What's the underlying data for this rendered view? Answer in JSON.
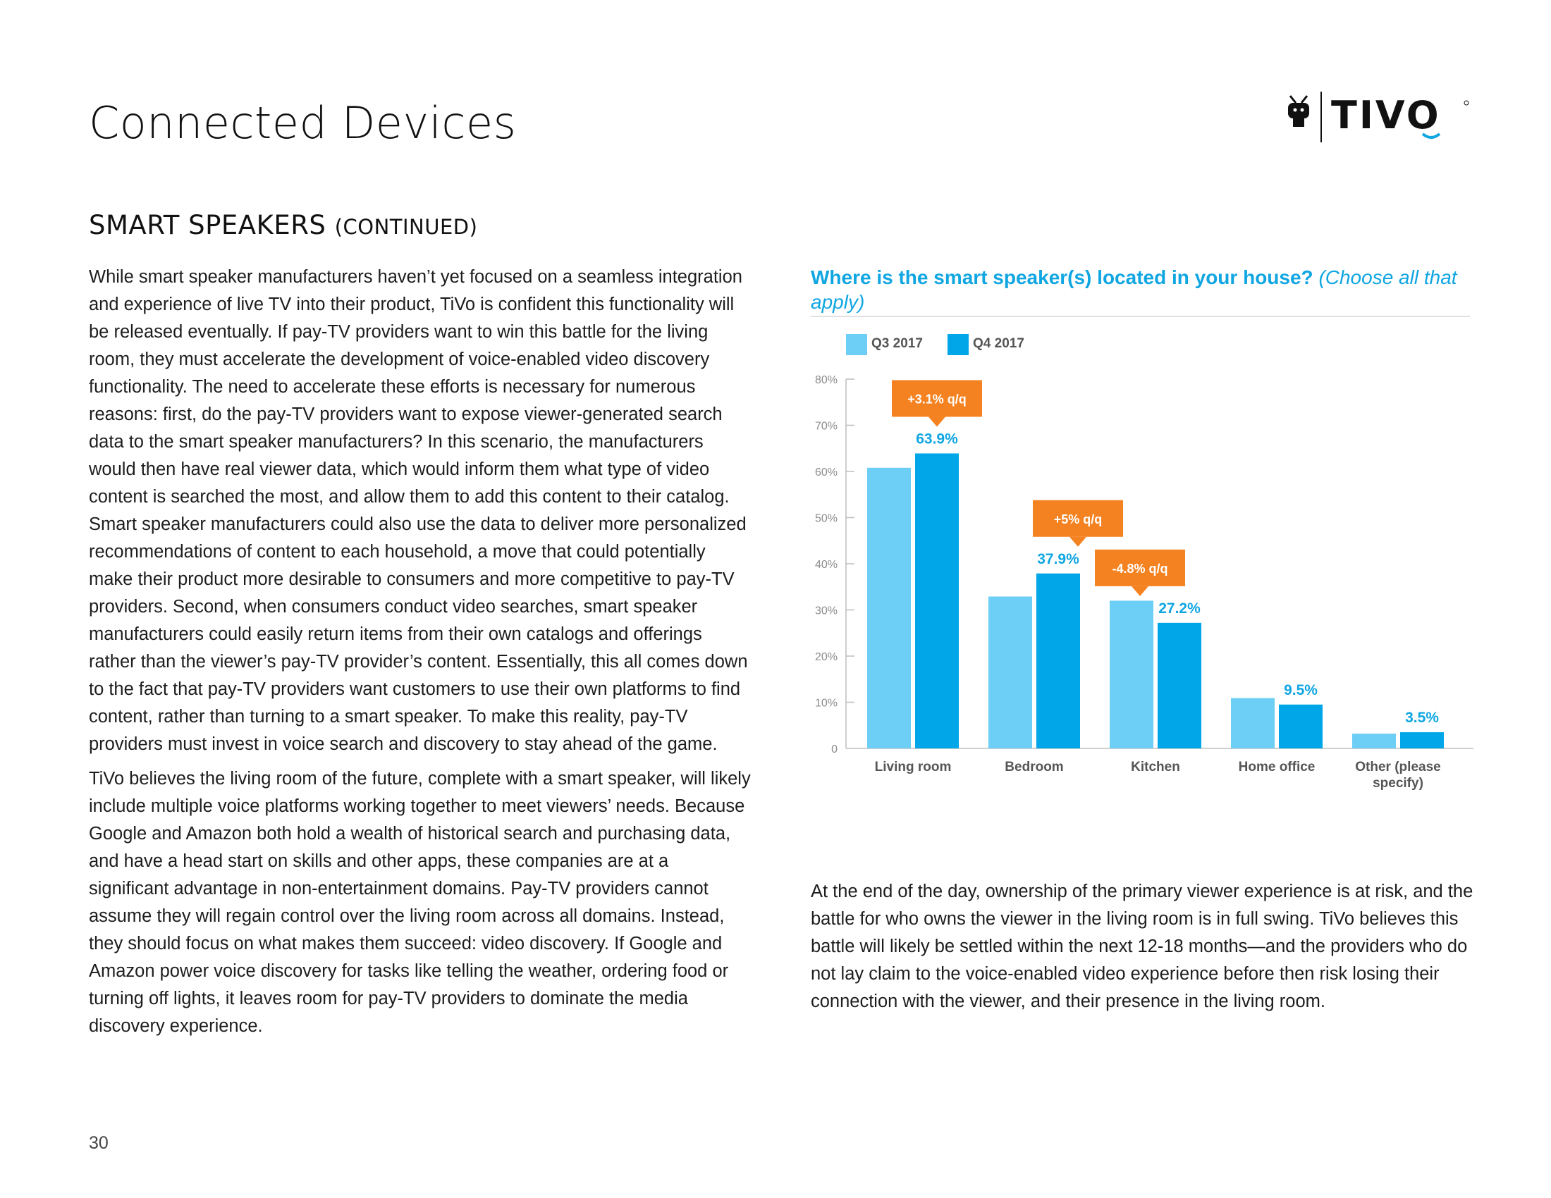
{
  "page": {
    "title": "Connected Devices",
    "section_heading": "SMART SPEAKERS",
    "section_subheading": "(CONTINUED)",
    "page_number": "30"
  },
  "logo": {
    "text": "TIVO",
    "icon": "tivo-guy-icon",
    "color": "#111111",
    "accent": "#10a6e2"
  },
  "body": {
    "paragraphs": [
      "While smart speaker manufacturers haven’t yet focused on a seamless integration and experience of live TV into their product, TiVo is confident this functionality will be released eventually. If pay-TV providers want to win this battle for the living room, they must accelerate the development of voice-enabled video discovery functionality. The need to accelerate these efforts is necessary for numerous reasons: first, do the pay-TV providers want to expose viewer-generated search data to the smart speaker manufacturers? In this scenario, the manufacturers would then have real viewer data, which would inform them what type of video content is searched the most, and allow them to add this content to their catalog. Smart speaker manufacturers could also use the data to deliver more personalized recommendations of content to each household, a move that could potentially make their product more desirable to consumers and more competitive to pay-TV providers. Second, when consumers conduct video searches, smart speaker manufacturers could easily return items from their own catalogs and offerings rather than the viewer’s pay-TV provider’s content. Essentially, this all comes down to the fact that pay-TV providers want customers to use their own platforms to find content, rather than turning to a smart speaker. To make this reality, pay-TV providers must invest in voice search and discovery to stay ahead of the game.",
      "TiVo believes the living room of the future, complete with a smart speaker, will likely include multiple voice platforms working together to meet viewers’ needs. Because Google and Amazon both hold a wealth of historical search and purchasing data, and have a head start on skills and other apps, these companies are at a significant advantage in non-entertainment domains. Pay-TV providers cannot assume they will regain control over the living room across all domains. Instead, they should focus on what makes them succeed: video discovery. If Google and Amazon power voice discovery for tasks like telling the weather, ordering food or turning off lights, it leaves room for pay-TV providers to dominate the media discovery experience."
    ],
    "right_paragraph": "At the end of the day, ownership of the primary viewer experience is at risk, and the battle for who owns the viewer in the living room is in full swing. TiVo believes this battle will likely be settled within the next 12-18 months—and the providers who do not lay claim to the voice-enabled video experience before then risk losing their connection with the viewer, and their presence in the living room."
  },
  "chart_data": {
    "type": "bar",
    "title": "Where is the smart speaker(s) located in your house?",
    "title_note": "(Choose all that apply)",
    "categories": [
      "Living room",
      "Bedroom",
      "Kitchen",
      "Home office",
      "Other (please specify)"
    ],
    "series": [
      {
        "name": "Q3 2017",
        "color": "#6dcff6",
        "values": [
          60.8,
          32.9,
          32.0,
          10.9,
          3.2
        ]
      },
      {
        "name": "Q4 2017",
        "color": "#00a6e8",
        "values": [
          63.9,
          37.9,
          27.2,
          9.5,
          3.5
        ]
      }
    ],
    "data_labels": [
      "63.9%",
      "37.9%",
      "27.2%",
      "9.5%",
      "3.5%"
    ],
    "callouts": [
      {
        "category": 0,
        "text": "+3.1% q/q"
      },
      {
        "category": 1,
        "text": "+5% q/q"
      },
      {
        "category": 2,
        "text": "-4.8% q/q"
      }
    ],
    "callout_color": "#f58220",
    "label_color": "#10a6e2",
    "ylim": [
      0,
      80
    ],
    "yticks": [
      0,
      10,
      20,
      30,
      40,
      50,
      60,
      70,
      80
    ],
    "ytick_labels": [
      "0",
      "10%",
      "20%",
      "30%",
      "40%",
      "50%",
      "60%",
      "70%",
      "80%"
    ],
    "xlabel": "",
    "ylabel": "",
    "grid": false,
    "legend_position": "top-left"
  }
}
